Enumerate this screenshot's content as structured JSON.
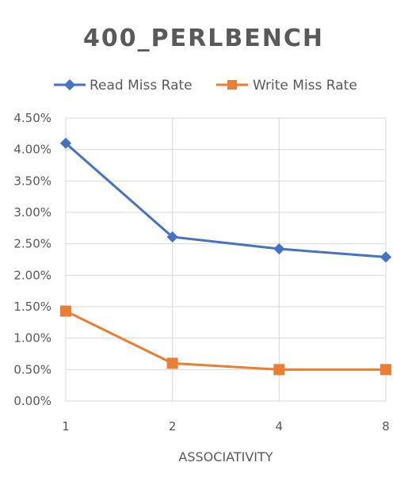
{
  "chart_data": {
    "type": "line",
    "title": "400_PERLBENCH",
    "xlabel": "ASSOCIATIVITY",
    "ylabel": "",
    "categories": [
      "1",
      "2",
      "4",
      "8"
    ],
    "y_ticks": [
      "0.00%",
      "0.50%",
      "1.00%",
      "1.50%",
      "2.00%",
      "2.50%",
      "3.00%",
      "3.50%",
      "4.00%",
      "4.50%"
    ],
    "ylim": [
      0,
      4.5
    ],
    "y_unit": "%",
    "grid": true,
    "legend_position": "top",
    "series": [
      {
        "name": "Read Miss Rate",
        "values": [
          4.1,
          2.61,
          2.42,
          2.29
        ],
        "color": "#4472c4",
        "marker": "diamond"
      },
      {
        "name": "Write Miss Rate",
        "values": [
          1.43,
          0.6,
          0.5,
          0.5
        ],
        "color": "#ed7d31",
        "marker": "square"
      }
    ]
  }
}
